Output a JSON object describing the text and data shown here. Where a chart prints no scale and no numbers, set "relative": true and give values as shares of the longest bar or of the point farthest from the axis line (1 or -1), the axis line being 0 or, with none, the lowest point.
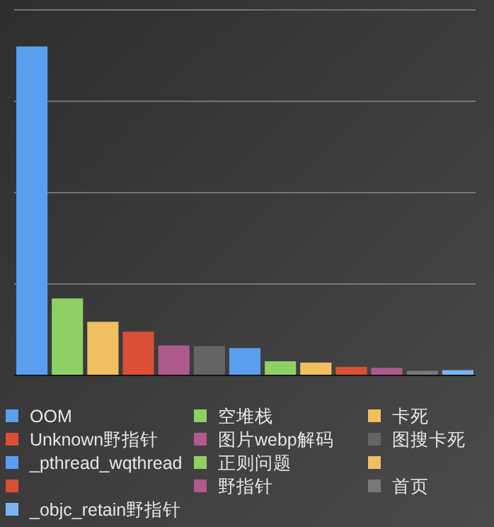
{
  "chart_data": {
    "type": "bar",
    "relative": true,
    "stacked": true,
    "grid": "y",
    "legend": "bottom",
    "categories": [
      null,
      null,
      null,
      null,
      null,
      null,
      null,
      null,
      null,
      null,
      null,
      null,
      null
    ],
    "series": [
      {
        "name": "OOM",
        "color": "#5a9ef0",
        "values": [
          1,
          null,
          null,
          null,
          null,
          null,
          null,
          null,
          null,
          null,
          null,
          null,
          null
        ]
      },
      {
        "name": "空堆栈",
        "color": "#8fd065",
        "values": [
          null,
          0.234,
          null,
          null,
          null,
          null,
          null,
          null,
          null,
          null,
          null,
          null,
          null
        ]
      },
      {
        "name": "卡死",
        "color": "#f0c060",
        "values": [
          null,
          null,
          0.163,
          null,
          null,
          null,
          null,
          null,
          null,
          null,
          null,
          null,
          null
        ]
      },
      {
        "name": "Unknown野指针",
        "color": "#dc4e35",
        "values": [
          null,
          null,
          null,
          0.133,
          null,
          null,
          null,
          null,
          null,
          null,
          null,
          null,
          null
        ]
      },
      {
        "name": "图片webp解码",
        "color": "#b05a8c",
        "values": [
          null,
          null,
          null,
          null,
          0.091,
          null,
          null,
          null,
          null,
          null,
          null,
          null,
          null
        ]
      },
      {
        "name": "图搜卡死",
        "color": "#646464",
        "values": [
          null,
          null,
          null,
          null,
          null,
          0.089,
          null,
          null,
          null,
          null,
          null,
          null,
          null
        ]
      },
      {
        "name": "_pthread_wqthread",
        "color": "#5a9ef0",
        "values": [
          null,
          null,
          null,
          null,
          null,
          null,
          0.083,
          null,
          null,
          null,
          null,
          null,
          null
        ]
      },
      {
        "name": "正则问题",
        "color": "#8fd065",
        "values": [
          null,
          null,
          null,
          null,
          null,
          null,
          null,
          0.043,
          null,
          null,
          null,
          null,
          null
        ]
      },
      {
        "color": "#f0c060",
        "values": [
          null,
          null,
          null,
          null,
          null,
          null,
          null,
          null,
          0.039,
          null,
          null,
          null,
          null
        ]
      },
      {
        "color": "#dc4e35",
        "values": [
          null,
          null,
          null,
          null,
          null,
          null,
          null,
          null,
          null,
          0.026,
          null,
          null,
          null
        ]
      },
      {
        "name": "野指针",
        "color": "#b05a8c",
        "values": [
          null,
          null,
          null,
          null,
          null,
          null,
          null,
          null,
          null,
          null,
          0.023,
          null,
          null
        ]
      },
      {
        "name": "首页",
        "color": "#787878",
        "values": [
          null,
          null,
          null,
          null,
          null,
          null,
          null,
          null,
          null,
          null,
          null,
          0.014,
          null
        ]
      },
      {
        "name": "_objc_retain野指针",
        "color": "#7ab4f0",
        "values": [
          null,
          null,
          null,
          null,
          null,
          null,
          null,
          null,
          null,
          null,
          null,
          null,
          0.016
        ]
      }
    ]
  }
}
